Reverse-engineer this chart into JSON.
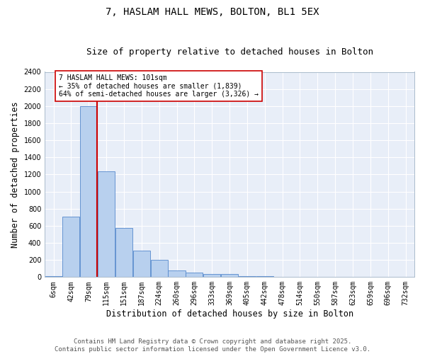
{
  "title": "7, HASLAM HALL MEWS, BOLTON, BL1 5EX",
  "subtitle": "Size of property relative to detached houses in Bolton",
  "xlabel": "Distribution of detached houses by size in Bolton",
  "ylabel": "Number of detached properties",
  "bar_labels": [
    "6sqm",
    "42sqm",
    "79sqm",
    "115sqm",
    "151sqm",
    "187sqm",
    "224sqm",
    "260sqm",
    "296sqm",
    "333sqm",
    "369sqm",
    "405sqm",
    "442sqm",
    "478sqm",
    "514sqm",
    "550sqm",
    "587sqm",
    "623sqm",
    "659sqm",
    "696sqm",
    "732sqm"
  ],
  "bar_values": [
    15,
    710,
    2000,
    1235,
    575,
    310,
    200,
    80,
    55,
    38,
    35,
    10,
    10,
    5,
    2,
    0,
    0,
    0,
    0,
    0,
    0
  ],
  "bar_color": "#b8d0ee",
  "bar_edge_color": "#5588cc",
  "vline_x": 2.48,
  "vline_color": "#cc0000",
  "annotation_text": "7 HASLAM HALL MEWS: 101sqm\n← 35% of detached houses are smaller (1,839)\n64% of semi-detached houses are larger (3,326) →",
  "annotation_box_color": "#ffffff",
  "annotation_box_edge": "#cc0000",
  "ylim": [
    0,
    2400
  ],
  "yticks": [
    0,
    200,
    400,
    600,
    800,
    1000,
    1200,
    1400,
    1600,
    1800,
    2000,
    2200,
    2400
  ],
  "bg_color": "#e8eef8",
  "grid_color": "#ffffff",
  "footer": "Contains HM Land Registry data © Crown copyright and database right 2025.\nContains public sector information licensed under the Open Government Licence v3.0.",
  "title_fontsize": 10,
  "subtitle_fontsize": 9,
  "label_fontsize": 8.5,
  "tick_fontsize": 7,
  "footer_fontsize": 6.5
}
